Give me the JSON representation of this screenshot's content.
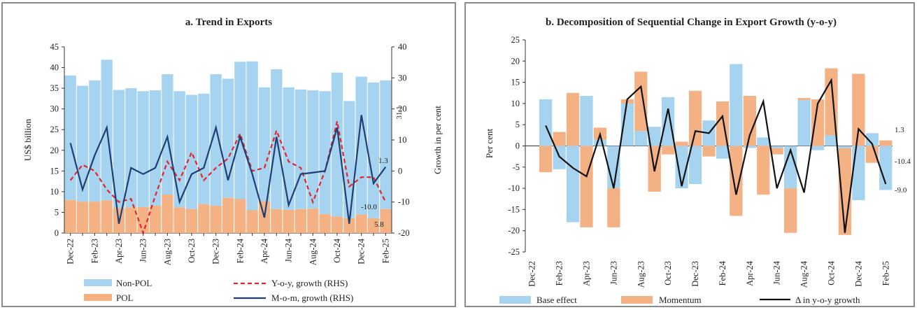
{
  "chart_data": [
    {
      "type": "bar",
      "title": "a. Trend in Exports",
      "ylabel": "US$ billion",
      "y2label": "Growth in per cent",
      "ylim": [
        0,
        45
      ],
      "y2lim": [
        -20,
        40
      ],
      "yticks": [
        "0",
        "5",
        "10",
        "15",
        "20",
        "25",
        "30",
        "35",
        "40",
        "45"
      ],
      "y2ticks": [
        "-20",
        "-10",
        "0",
        "10",
        "20",
        "30",
        "40"
      ],
      "categories": [
        "Dec-22",
        "Jan-23",
        "Feb-23",
        "Mar-23",
        "Apr-23",
        "May-23",
        "Jun-23",
        "Jul-23",
        "Aug-23",
        "Sep-23",
        "Oct-23",
        "Nov-23",
        "Dec-23",
        "Jan-24",
        "Feb-24",
        "Mar-24",
        "Apr-24",
        "May-24",
        "Jun-24",
        "Jul-24",
        "Aug-24",
        "Sep-24",
        "Oct-24",
        "Nov-24",
        "Dec-24",
        "Jan-25",
        "Feb-25"
      ],
      "xticklabels": [
        "Dec-22",
        "",
        "Feb-23",
        "",
        "Apr-23",
        "",
        "Jun-23",
        "",
        "Aug-23",
        "",
        "Oct-23",
        "",
        "Dec-23",
        "",
        "Feb-24",
        "",
        "Apr-24",
        "",
        "Jun-24",
        "",
        "Aug-24",
        "",
        "Oct-24",
        "",
        "Dec-24",
        "",
        "Feb-25"
      ],
      "stacked": true,
      "series": [
        {
          "name": "POL",
          "axis": "left",
          "color": "#f4b183",
          "values": [
            8.0,
            7.6,
            7.6,
            7.9,
            6.1,
            6.2,
            6.3,
            6.6,
            9.3,
            6.2,
            5.8,
            7.0,
            6.6,
            8.5,
            8.2,
            5.5,
            7.7,
            5.8,
            5.6,
            5.8,
            5.9,
            4.6,
            4.0,
            3.6,
            4.5,
            3.6,
            5.8
          ]
        },
        {
          "name": "Non-POL",
          "axis": "left",
          "color": "#a6d3f0",
          "values": [
            30.1,
            28.0,
            29.3,
            34.0,
            28.5,
            28.8,
            28.0,
            27.9,
            29.1,
            28.1,
            27.6,
            26.7,
            31.8,
            28.8,
            33.2,
            36.0,
            27.5,
            33.8,
            29.6,
            28.9,
            28.6,
            29.7,
            34.8,
            28.3,
            33.3,
            32.8,
            31.1
          ]
        },
        {
          "name": "Y-o-y, growth (RHS)",
          "axis": "right",
          "type": "line",
          "style": "dashed",
          "color": "#e0262b",
          "values": [
            -3.0,
            2.0,
            0.0,
            -6.0,
            -10.0,
            -9.0,
            -20.0,
            -8.0,
            3.0,
            -3.0,
            6.0,
            -3.0,
            1.0,
            4.0,
            12.0,
            0.0,
            1.0,
            13.0,
            3.0,
            1.0,
            -10.0,
            0.0,
            16.0,
            -5.0,
            -2.0,
            -2.0,
            -10.0
          ]
        },
        {
          "name": "M-o-m, growth (RHS)",
          "axis": "right",
          "type": "line",
          "color": "#1f3e73",
          "values": [
            9.0,
            -6.0,
            5.0,
            14.0,
            -17.0,
            1.0,
            -1.0,
            1.0,
            11.0,
            -10.0,
            -1.0,
            1.0,
            14.0,
            -3.0,
            11.0,
            -1.0,
            -15.0,
            11.0,
            -11.0,
            -1.0,
            -0.5,
            0.0,
            14.0,
            -17.0,
            18.0,
            -4.0,
            1.3
          ]
        }
      ],
      "annotations": [
        "31.1",
        "1.3",
        "-10.0",
        "5.8"
      ],
      "legend": "bottom"
    },
    {
      "type": "bar",
      "title": "b. Decomposition of Sequential Change in Export Growth (y-o-y)",
      "ylabel": "Per cent",
      "ylim": [
        -25,
        25
      ],
      "yticks": [
        "-25",
        "-20",
        "-15",
        "-10",
        "-5",
        "0",
        "5",
        "10",
        "15",
        "20",
        "25"
      ],
      "categories": [
        "Dec-22",
        "Jan-23",
        "Feb-23",
        "Mar-23",
        "Apr-23",
        "May-23",
        "Jun-23",
        "Jul-23",
        "Aug-23",
        "Sep-23",
        "Oct-23",
        "Nov-23",
        "Dec-23",
        "Jan-24",
        "Feb-24",
        "Mar-24",
        "Apr-24",
        "May-24",
        "Jun-24",
        "Jul-24",
        "Aug-24",
        "Sep-24",
        "Oct-24",
        "Nov-24",
        "Dec-24",
        "Jan-25",
        "Feb-25"
      ],
      "xticklabels": [
        "Dec-22",
        "",
        "Feb-23",
        "",
        "Apr-23",
        "",
        "Jun-23",
        "",
        "Aug-23",
        "",
        "Oct-23",
        "",
        "Dec-23",
        "",
        "Feb-24",
        "",
        "Apr-24",
        "",
        "Jun-24",
        "",
        "Aug-24",
        "",
        "Oct-24",
        "",
        "Dec-24",
        "",
        "Feb-25"
      ],
      "stacked": true,
      "series": [
        {
          "name": "Base effect",
          "color": "#a6d3f0",
          "values": [
            null,
            11.0,
            -5.5,
            -18.0,
            11.8,
            1.5,
            -10.0,
            10.0,
            3.5,
            4.5,
            11.5,
            -10.0,
            -9.0,
            6.0,
            -3.0,
            19.3,
            -0.5,
            2.0,
            -0.5,
            -10.0,
            10.8,
            -1.0,
            2.5,
            -0.5,
            -12.8,
            3.0,
            -10.4
          ]
        },
        {
          "name": "Momentum",
          "color": "#f4b183",
          "values": [
            null,
            -6.2,
            3.3,
            12.5,
            -19.2,
            2.8,
            -9.2,
            1.0,
            14.0,
            -10.8,
            -2.0,
            1.0,
            13.0,
            -2.5,
            10.5,
            -16.5,
            11.8,
            -11.5,
            -1.5,
            -10.5,
            0.5,
            11.0,
            15.8,
            -20.5,
            17.0,
            -4.0,
            1.3
          ]
        },
        {
          "name": "Δ in y-o-y growth",
          "type": "line",
          "color": "#111111",
          "values": [
            null,
            4.8,
            -2.5,
            -5.2,
            -7.2,
            2.7,
            -10.0,
            11.0,
            14.0,
            -6.0,
            8.8,
            -9.5,
            3.5,
            3.0,
            7.0,
            -11.5,
            2.5,
            10.5,
            -10.0,
            -1.0,
            -11.0,
            10.0,
            15.5,
            -20.5,
            4.0,
            0.5,
            -9.0
          ]
        }
      ],
      "annotations": [
        "1.3",
        "-10.4",
        "-9.0"
      ],
      "legend": "bottom"
    }
  ]
}
